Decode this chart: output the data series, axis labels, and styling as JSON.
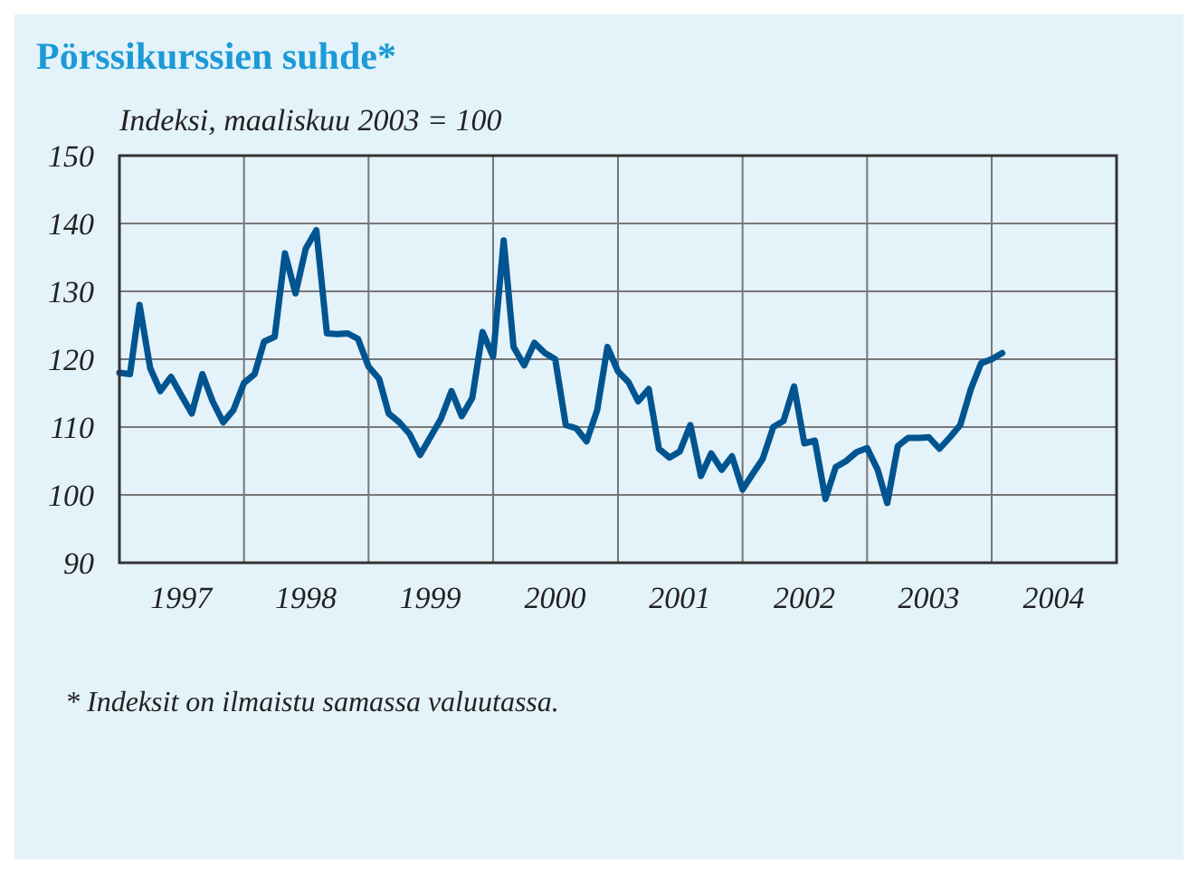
{
  "chart_data": {
    "type": "line",
    "title": "Pörssikurssien suhde*",
    "ylabel": "Indeksi, maaliskuu 2003 = 100",
    "x": [
      "1997-01",
      "1997-02",
      "1997-03",
      "1997-04",
      "1997-05",
      "1997-06",
      "1997-07",
      "1997-08",
      "1997-09",
      "1997-10",
      "1997-11",
      "1997-12",
      "1998-01",
      "1998-02",
      "1998-03",
      "1998-04",
      "1998-05",
      "1998-06",
      "1998-07",
      "1998-08",
      "1998-09",
      "1998-10",
      "1998-11",
      "1998-12",
      "1999-01",
      "1999-02",
      "1999-03",
      "1999-04",
      "1999-05",
      "1999-06",
      "1999-07",
      "1999-08",
      "1999-09",
      "1999-10",
      "1999-11",
      "1999-12",
      "2000-01",
      "2000-02",
      "2000-03",
      "2000-04",
      "2000-05",
      "2000-06",
      "2000-07",
      "2000-08",
      "2000-09",
      "2000-10",
      "2000-11",
      "2000-12",
      "2001-01",
      "2001-02",
      "2001-03",
      "2001-04",
      "2001-05",
      "2001-06",
      "2001-07",
      "2001-08",
      "2001-09",
      "2001-10",
      "2001-11",
      "2001-12",
      "2002-01",
      "2002-02",
      "2002-03",
      "2002-04",
      "2002-05",
      "2002-06",
      "2002-07",
      "2002-08",
      "2002-09",
      "2002-10",
      "2002-11",
      "2002-12",
      "2003-01",
      "2003-02",
      "2003-03",
      "2003-04",
      "2003-05",
      "2003-06",
      "2003-07",
      "2003-08",
      "2003-09",
      "2003-10",
      "2003-11",
      "2003-12",
      "2004-01",
      "2004-02"
    ],
    "series": [
      {
        "color": "#00548f",
        "values": [
          118,
          117.8,
          128,
          118.7,
          115.3,
          117.4,
          114.7,
          112,
          117.8,
          113.8,
          110.7,
          112.5,
          116.5,
          117.8,
          122.6,
          123.3,
          135.6,
          129.7,
          136.3,
          139,
          123.8,
          123.7,
          123.8,
          123,
          118.9,
          117.1,
          112,
          110.7,
          109,
          105.9,
          108.5,
          111.2,
          115.3,
          111.6,
          114.3,
          124,
          120.4,
          137.5,
          121.8,
          119.1,
          122.4,
          120.9,
          120,
          110.3,
          109.8,
          107.9,
          112.5,
          121.8,
          118.2,
          116.6,
          113.8,
          115.6,
          106.8,
          105.5,
          106.4,
          110.3,
          102.8,
          106.1,
          103.7,
          105.7,
          100.8,
          103.2,
          105.3,
          110,
          110.9,
          116,
          107.6,
          108,
          99.4,
          104.1,
          105,
          106.3,
          106.9,
          103.7,
          98.8,
          107.2,
          108.4,
          108.4,
          108.5,
          106.8,
          108.5,
          110.3,
          115.6,
          119.4,
          120,
          120.9
        ]
      }
    ],
    "xlim": [
      "1997-01",
      "2005-01"
    ],
    "xticks": [
      {
        "value": "1997-07",
        "label": "1997"
      },
      {
        "value": "1998-01",
        "label": null
      },
      {
        "value": "1998-07",
        "label": "1998"
      },
      {
        "value": "1999-01",
        "label": null
      },
      {
        "value": "1999-07",
        "label": "1999"
      },
      {
        "value": "2000-01",
        "label": null
      },
      {
        "value": "2000-07",
        "label": "2000"
      },
      {
        "value": "2001-01",
        "label": null
      },
      {
        "value": "2001-07",
        "label": "2001"
      },
      {
        "value": "2002-01",
        "label": null
      },
      {
        "value": "2002-07",
        "label": "2002"
      },
      {
        "value": "2003-01",
        "label": null
      },
      {
        "value": "2003-07",
        "label": "2003"
      },
      {
        "value": "2004-01",
        "label": null
      },
      {
        "value": "2004-07",
        "label": "2004"
      }
    ],
    "ylim": [
      90,
      150
    ],
    "yticks": [
      90,
      100,
      110,
      120,
      130,
      140,
      150
    ],
    "grid": true,
    "marker": "none",
    "line_style": "solid",
    "annotations": [
      "* Indeksit on ilmaistu samassa valuutassa."
    ]
  }
}
